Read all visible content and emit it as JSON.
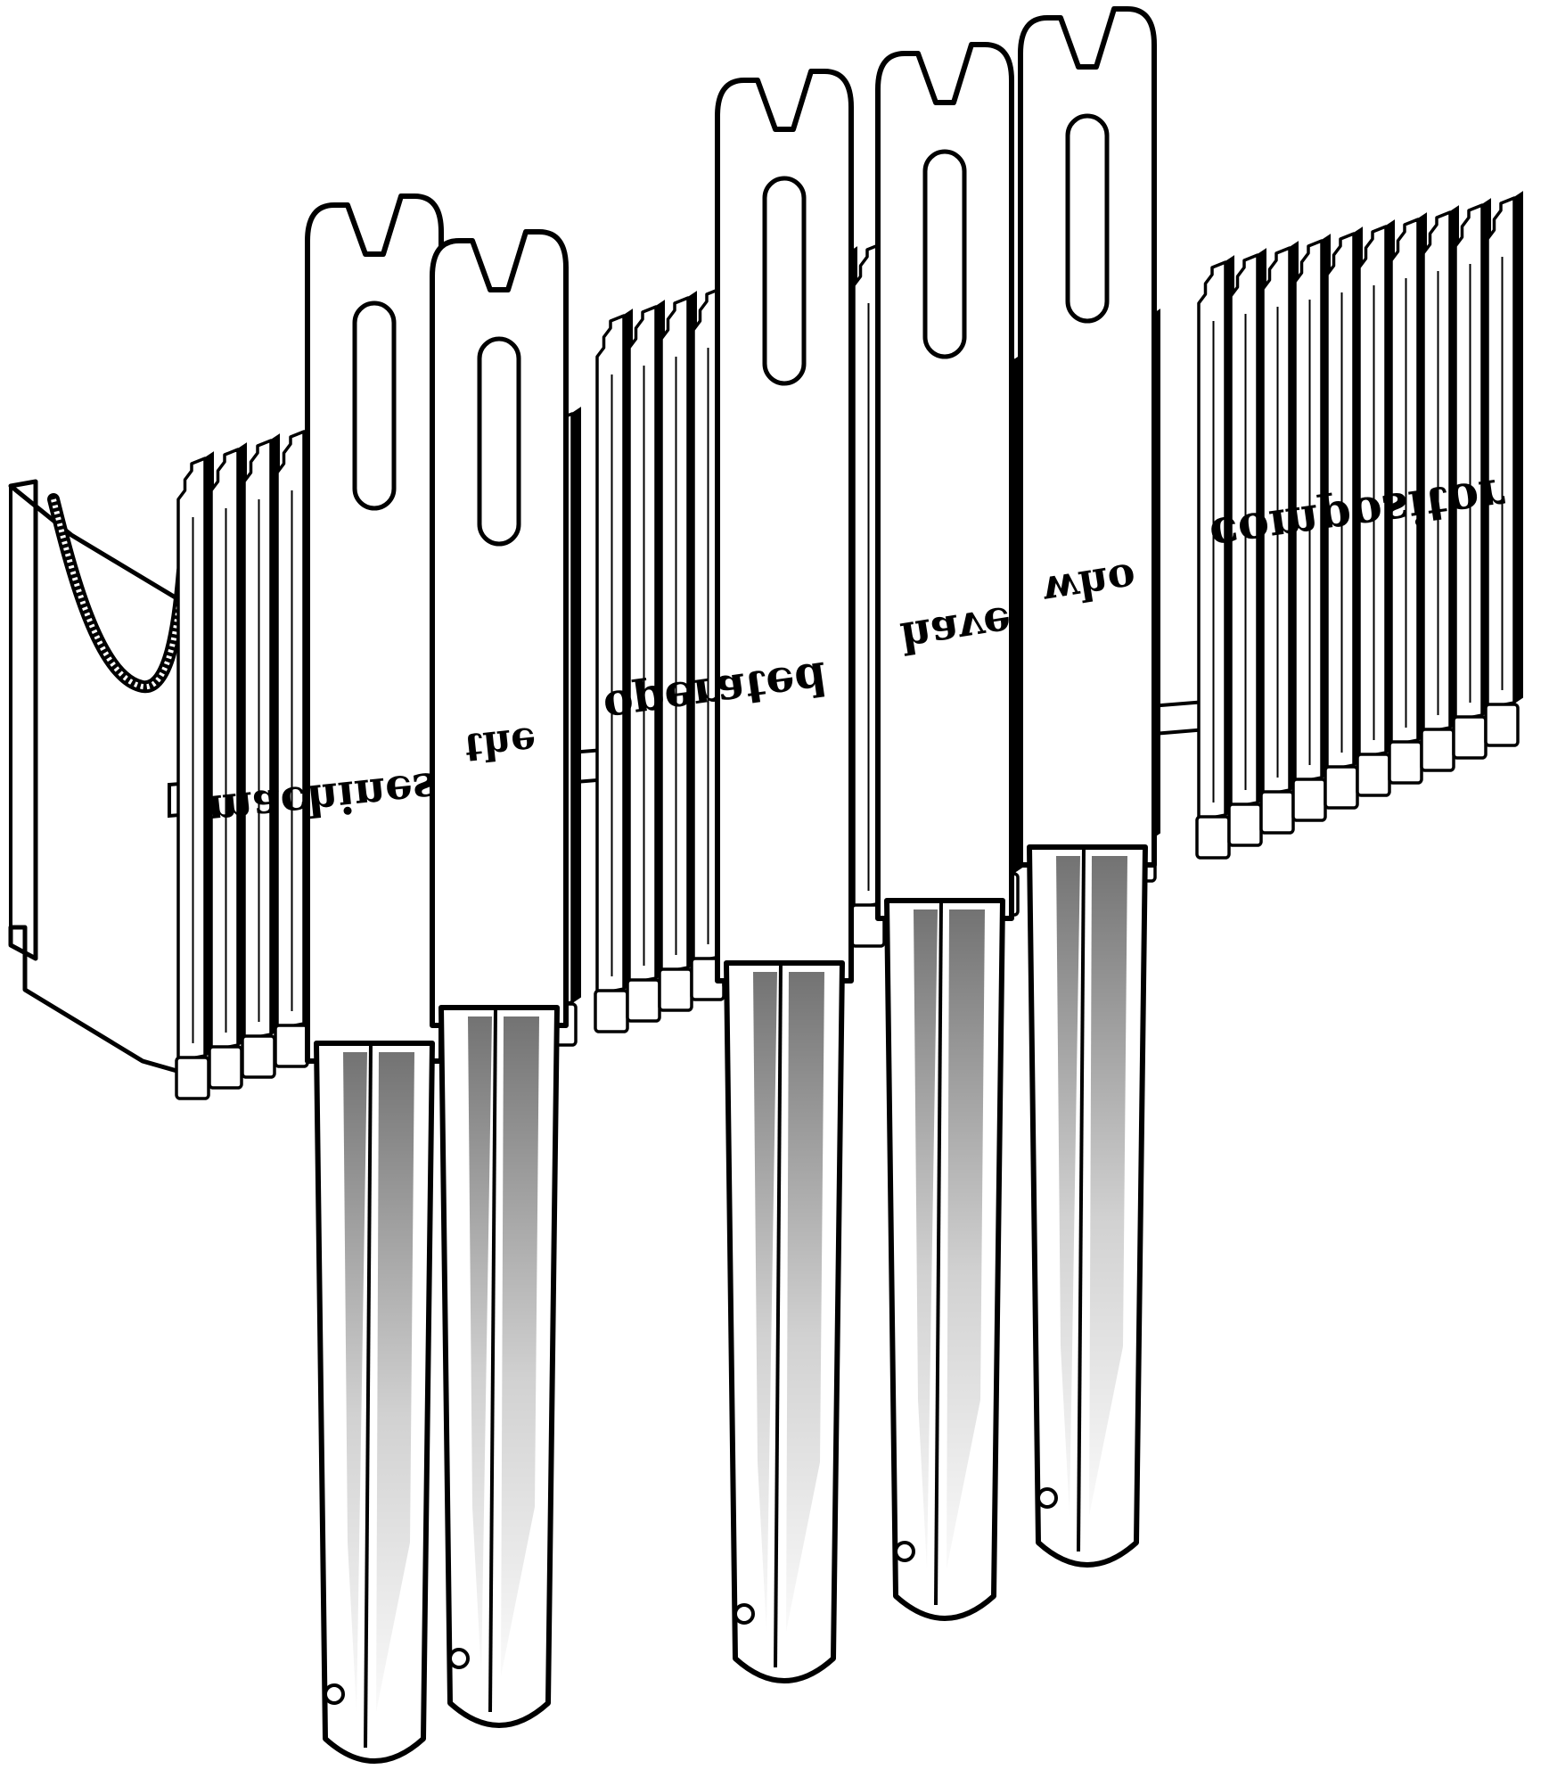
{
  "illustration": {
    "ink_color": "#000000",
    "paper_color": "#ffffff",
    "type_words": [
      {
        "name": "word-machines",
        "text": "machines"
      },
      {
        "name": "word-the",
        "text": "the"
      },
      {
        "name": "word-operated",
        "text": "operated"
      },
      {
        "name": "word-have",
        "text": "have"
      },
      {
        "name": "word-who",
        "text": "who"
      },
      {
        "name": "word-compositor",
        "text": "compositor"
      }
    ]
  }
}
